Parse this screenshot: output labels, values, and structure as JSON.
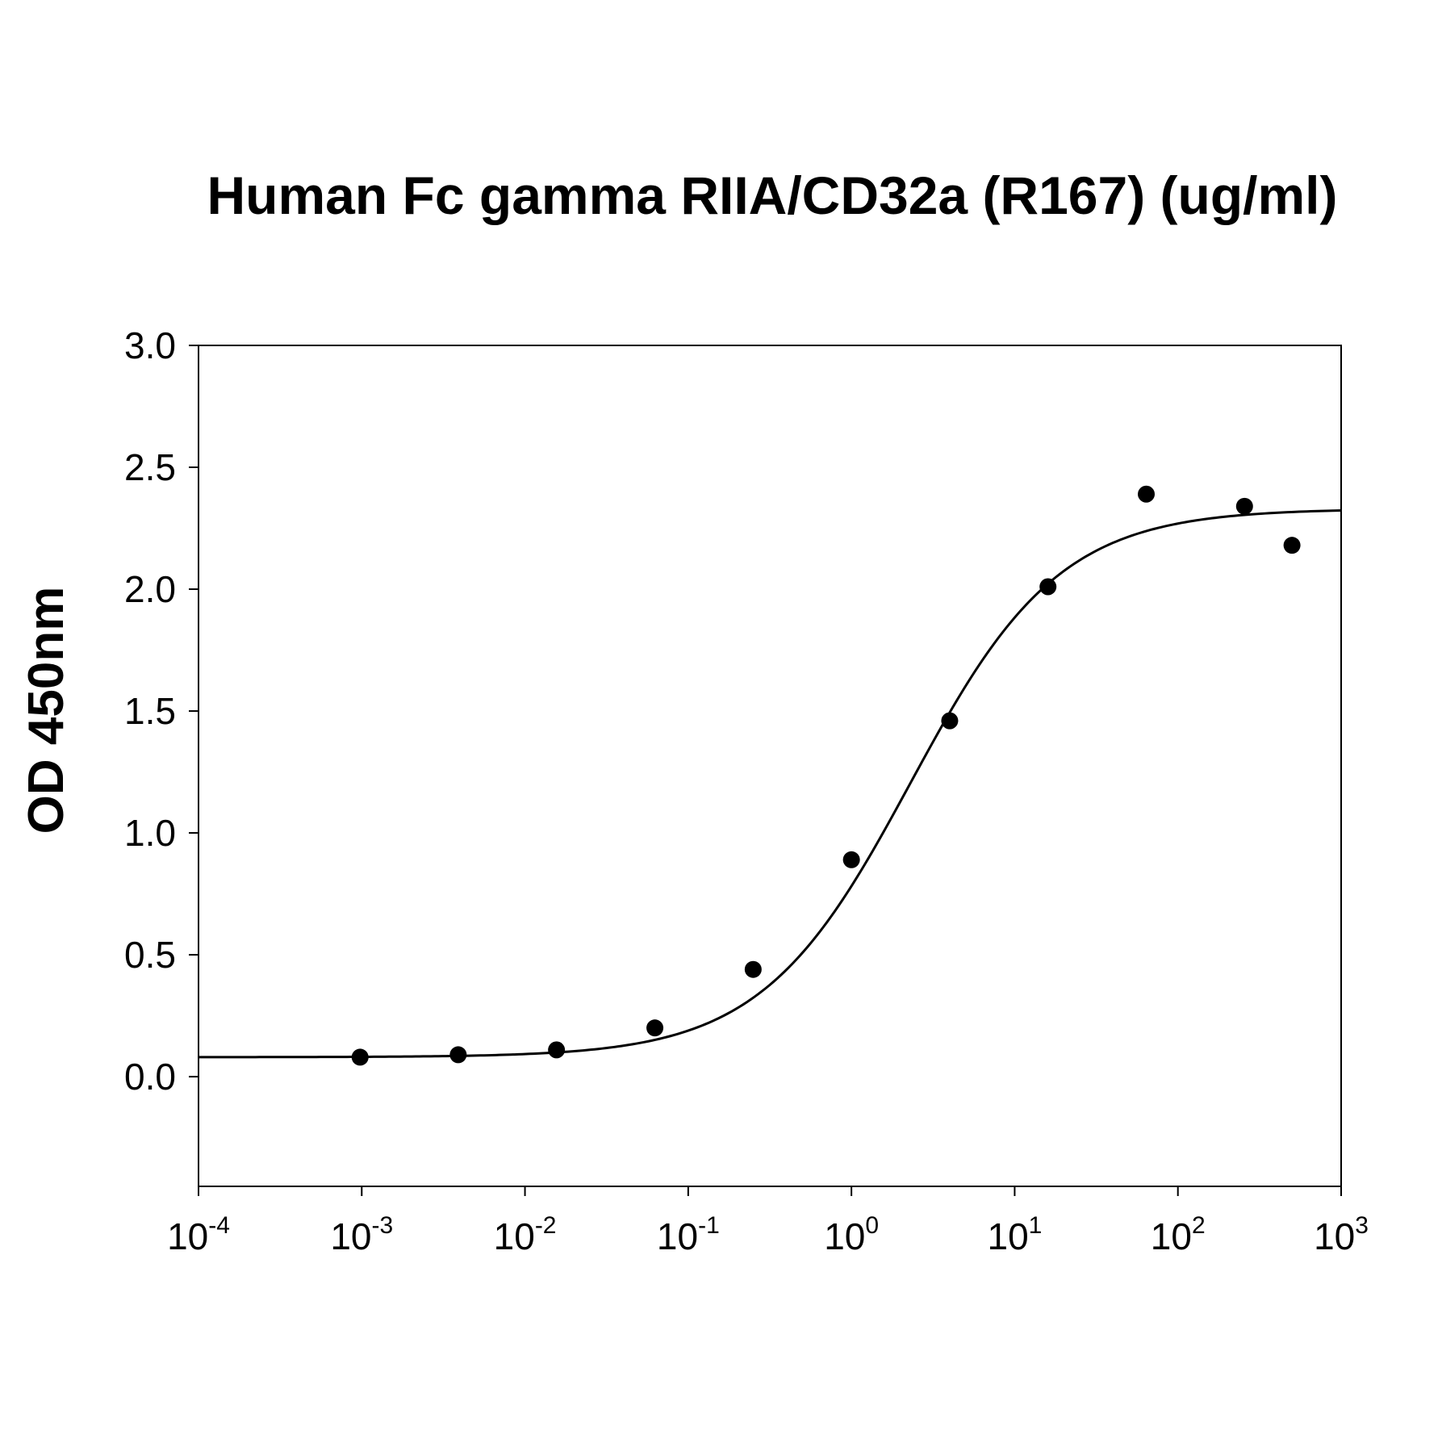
{
  "chart_data": {
    "type": "scatter",
    "title": "Human Fc gamma RIIA/CD32a (R167) (ug/ml)",
    "xlabel": "",
    "ylabel": "OD 450nm",
    "xscale": "log",
    "xlim": [
      0.0001,
      1000
    ],
    "ylim": [
      -0.45,
      3.0
    ],
    "xticks": [
      {
        "base": "10",
        "exp": "-4",
        "value": 0.0001
      },
      {
        "base": "10",
        "exp": "-3",
        "value": 0.001
      },
      {
        "base": "10",
        "exp": "-2",
        "value": 0.01
      },
      {
        "base": "10",
        "exp": "-1",
        "value": 0.1
      },
      {
        "base": "10",
        "exp": "0",
        "value": 1
      },
      {
        "base": "10",
        "exp": "1",
        "value": 10
      },
      {
        "base": "10",
        "exp": "2",
        "value": 100
      },
      {
        "base": "10",
        "exp": "3",
        "value": 1000
      }
    ],
    "yticks": [
      {
        "label": "0.0",
        "value": 0.0
      },
      {
        "label": "0.5",
        "value": 0.5
      },
      {
        "label": "1.0",
        "value": 1.0
      },
      {
        "label": "1.5",
        "value": 1.5
      },
      {
        "label": "2.0",
        "value": 2.0
      },
      {
        "label": "2.5",
        "value": 2.5
      },
      {
        "label": "3.0",
        "value": 3.0
      }
    ],
    "grid": false,
    "legend": "none",
    "series": [
      {
        "x": [
          0.000977,
          0.0039,
          0.0156,
          0.0625,
          0.25,
          1,
          4,
          16,
          64,
          256,
          500
        ],
        "y": [
          0.08,
          0.09,
          0.11,
          0.2,
          0.44,
          0.89,
          1.46,
          2.01,
          2.39,
          2.34,
          2.18
        ]
      }
    ],
    "fit": {
      "model": "4PL",
      "bottom": 0.08,
      "top": 2.33,
      "ec50": 2.3,
      "hill": 0.95,
      "x_range": [
        0.0001,
        1000
      ]
    },
    "colors": {
      "markers": "#000000",
      "curve": "#000000",
      "axes": "#000000",
      "background": "#ffffff"
    }
  }
}
